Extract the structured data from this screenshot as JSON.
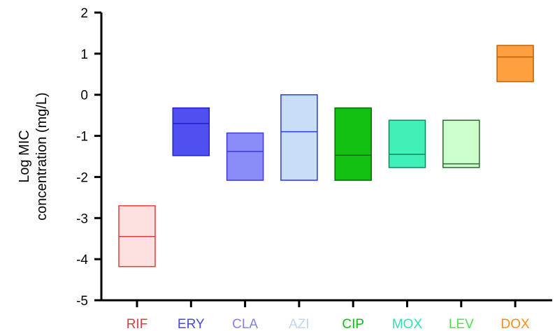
{
  "chart_data": {
    "type": "box",
    "ylabel_lines": [
      "Log MIC",
      "concentration (mg/L)"
    ],
    "ylim": [
      -5,
      2
    ],
    "yticks": [
      2,
      1,
      0,
      -1,
      -2,
      -3,
      -4,
      -5
    ],
    "grid": false,
    "categories": [
      "RIF",
      "ERY",
      "CLA",
      "AZI",
      "CIP",
      "MOX",
      "LEV",
      "DOX"
    ],
    "boxes": [
      {
        "label": "RIF",
        "low": -4.18,
        "median": -3.45,
        "high": -2.7,
        "fill": "#fde0e0",
        "stroke": "#e03c3c",
        "label_color": "#e03c3c"
      },
      {
        "label": "ERY",
        "low": -1.48,
        "median": -0.7,
        "high": -0.32,
        "fill": "#5050f0",
        "stroke": "#2020c8",
        "label_color": "#4848e8"
      },
      {
        "label": "CLA",
        "low": -2.08,
        "median": -1.38,
        "high": -0.93,
        "fill": "#8c8cf8",
        "stroke": "#3a3ad8",
        "label_color": "#8080f0"
      },
      {
        "label": "AZI",
        "low": -2.08,
        "median": -0.9,
        "high": 0.0,
        "fill": "#c8ddf8",
        "stroke": "#2a3ae0",
        "label_color": "#c0d4f4"
      },
      {
        "label": "CIP",
        "low": -2.08,
        "median": -1.47,
        "high": -0.32,
        "fill": "#12c012",
        "stroke": "#0a6a0a",
        "label_color": "#10c010"
      },
      {
        "label": "MOX",
        "low": -1.77,
        "median": -1.45,
        "high": -0.62,
        "fill": "#40f0b8",
        "stroke": "#0a8a5a",
        "label_color": "#30e0b0"
      },
      {
        "label": "LEV",
        "low": -1.77,
        "median": -1.68,
        "high": -0.62,
        "fill": "#ccffcc",
        "stroke": "#2a6a2a",
        "label_color": "#50e050"
      },
      {
        "label": "DOX",
        "low": 0.32,
        "median": 0.92,
        "high": 1.2,
        "fill": "#ffa040",
        "stroke": "#c06000",
        "label_color": "#ff8c1a"
      }
    ]
  }
}
